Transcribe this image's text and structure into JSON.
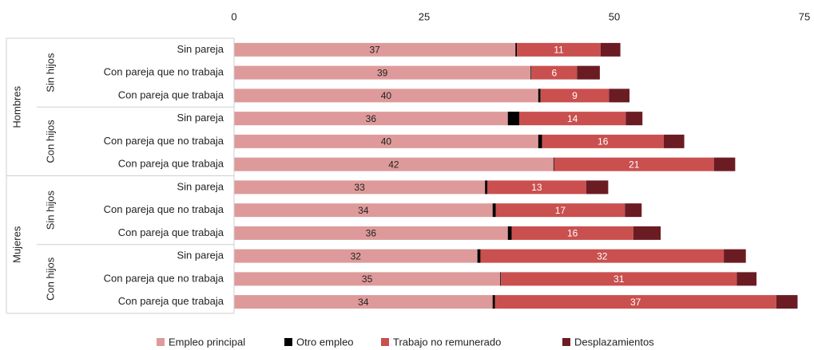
{
  "chart_data": {
    "type": "stacked-barh",
    "groups": [
      {
        "name": "Hombres",
        "subgroups": [
          "Sin hijos",
          "Con hijos"
        ]
      },
      {
        "name": "Mujeres",
        "subgroups": [
          "Sin hijos",
          "Con hijos"
        ]
      }
    ],
    "categories": [
      "Sin pareja",
      "Con pareja que no trabaja",
      "Con pareja que trabaja",
      "Sin pareja",
      "Con pareja que no trabaja",
      "Con pareja que trabaja",
      "Sin pareja",
      "Con pareja que no trabaja",
      "Con pareja que trabaja",
      "Sin pareja",
      "Con pareja que no trabaja",
      "Con pareja que trabaja"
    ],
    "series": [
      {
        "name": "Empleo principal",
        "color": "#de9a9a",
        "label_color": "#222",
        "values": [
          37,
          39,
          40,
          36,
          40,
          42,
          33,
          34,
          36,
          32,
          35,
          34
        ]
      },
      {
        "name": "Otro empleo",
        "color": "#000000",
        "values": [
          0.2,
          0.1,
          0.3,
          1.5,
          0.5,
          0.1,
          0.3,
          0.4,
          0.5,
          0.4,
          0.1,
          0.3
        ]
      },
      {
        "name": "Trabajo no remunerado",
        "color": "#c9504f",
        "label_color": "#fff",
        "values": [
          11,
          6,
          9,
          14,
          16,
          21,
          13,
          17,
          16,
          32,
          31,
          37
        ]
      },
      {
        "name": "Desplazamientos",
        "color": "#6b1c22",
        "values": [
          2.6,
          3,
          2.7,
          2.2,
          2.7,
          2.8,
          2.9,
          2.2,
          3.6,
          2.9,
          2.6,
          2.8
        ]
      }
    ],
    "labeled_series": [
      0,
      2
    ],
    "xlim": [
      0,
      75
    ],
    "xticks": [
      0,
      25,
      50,
      75
    ]
  }
}
